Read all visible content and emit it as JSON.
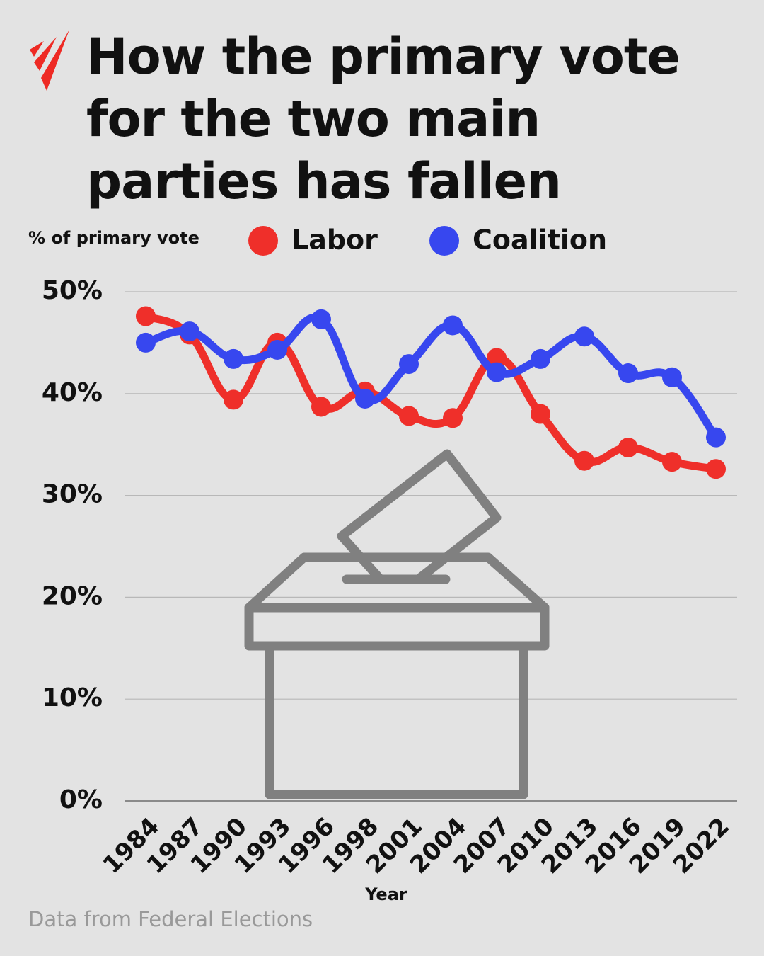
{
  "chart_data": {
    "type": "line",
    "title": "How the primary vote for the two main parties has fallen",
    "y_label": "% of primary vote",
    "x_label": "Year",
    "source": "Data from Federal Elections",
    "categories": [
      "1984",
      "1987",
      "1990",
      "1993",
      "1996",
      "1998",
      "2001",
      "2004",
      "2007",
      "2010",
      "2013",
      "2016",
      "2019",
      "2022"
    ],
    "series": [
      {
        "name": "Labor",
        "color": "#ef2f2a",
        "values": [
          47.6,
          45.8,
          39.4,
          45.0,
          38.7,
          40.2,
          37.8,
          37.6,
          43.5,
          38.0,
          33.4,
          34.7,
          33.3,
          32.6
        ]
      },
      {
        "name": "Coalition",
        "color": "#3747ef",
        "values": [
          45.0,
          46.1,
          43.4,
          44.3,
          47.3,
          39.5,
          42.9,
          46.7,
          42.1,
          43.4,
          45.6,
          42.0,
          41.6,
          35.7
        ]
      }
    ],
    "ylim": [
      0,
      50
    ],
    "yticks": [
      {
        "value": 0,
        "label": "0%"
      },
      {
        "value": 10,
        "label": "10%"
      },
      {
        "value": 20,
        "label": "20%"
      },
      {
        "value": 30,
        "label": "30%"
      },
      {
        "value": 40,
        "label": "40%"
      },
      {
        "value": 50,
        "label": "50%"
      }
    ],
    "grid": true
  }
}
